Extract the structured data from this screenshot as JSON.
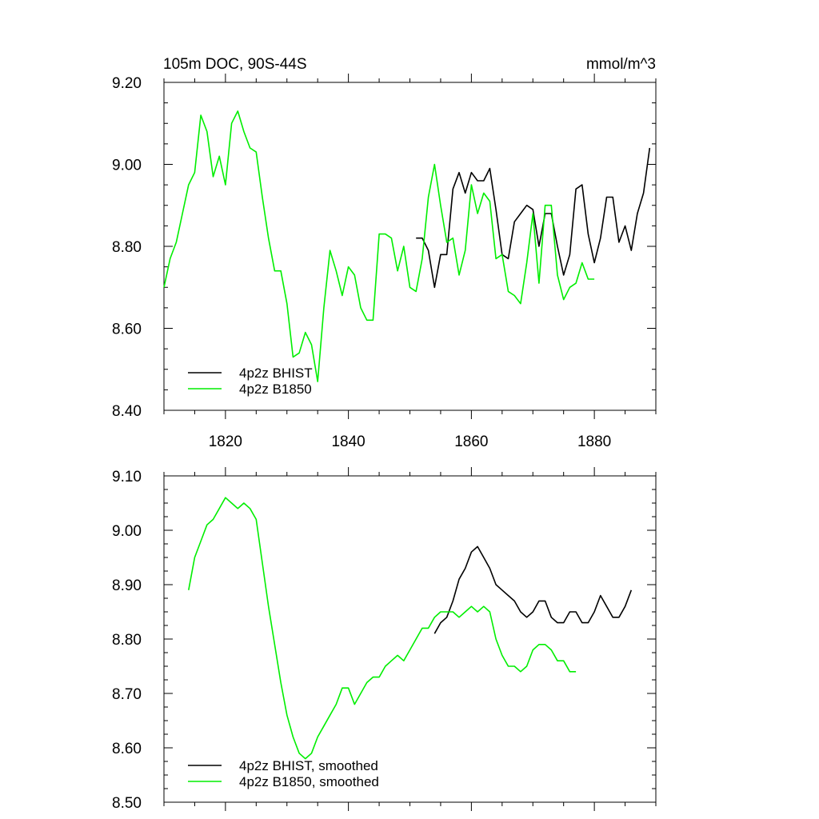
{
  "title_left": "105m DOC, 90S-44S",
  "title_right": "mmol/m^3",
  "colors": {
    "bhist": "#000000",
    "b1850": "#00ee00"
  },
  "chart_data": [
    {
      "type": "line",
      "xlim": [
        1810,
        1890
      ],
      "ylim": [
        8.4,
        9.2
      ],
      "x_ticks": [
        1820,
        1840,
        1860,
        1880
      ],
      "y_ticks": [
        8.4,
        8.6,
        8.8,
        9.0,
        9.2
      ],
      "y_tick_labels": [
        "8.40",
        "8.60",
        "8.80",
        "9.00",
        "9.20"
      ],
      "grid": false,
      "legend_position": "bottom-left",
      "series": [
        {
          "name": "4p2z BHIST",
          "color": "#000000",
          "x": [
            1851,
            1852,
            1853,
            1854,
            1855,
            1856,
            1857,
            1858,
            1859,
            1860,
            1861,
            1862,
            1863,
            1864,
            1865,
            1866,
            1867,
            1868,
            1869,
            1870,
            1871,
            1872,
            1873,
            1874,
            1875,
            1876,
            1877,
            1878,
            1879,
            1880,
            1881,
            1882,
            1883,
            1884,
            1885,
            1886,
            1887,
            1888,
            1889
          ],
          "values": [
            8.82,
            8.82,
            8.79,
            8.7,
            8.78,
            8.78,
            8.94,
            8.98,
            8.93,
            8.98,
            8.96,
            8.96,
            8.99,
            8.89,
            8.78,
            8.77,
            8.86,
            8.88,
            8.9,
            8.89,
            8.8,
            8.88,
            8.88,
            8.8,
            8.73,
            8.78,
            8.94,
            8.95,
            8.83,
            8.76,
            8.82,
            8.92,
            8.92,
            8.81,
            8.85,
            8.79,
            8.88,
            8.93,
            9.04
          ]
        },
        {
          "name": "4p2z B1850",
          "color": "#00ee00",
          "x": [
            1810,
            1811,
            1812,
            1813,
            1814,
            1815,
            1816,
            1817,
            1818,
            1819,
            1820,
            1821,
            1822,
            1823,
            1824,
            1825,
            1826,
            1827,
            1828,
            1829,
            1830,
            1831,
            1832,
            1833,
            1834,
            1835,
            1836,
            1837,
            1838,
            1839,
            1840,
            1841,
            1842,
            1843,
            1844,
            1845,
            1846,
            1847,
            1848,
            1849,
            1850,
            1851,
            1852,
            1853,
            1854,
            1855,
            1856,
            1857,
            1858,
            1859,
            1860,
            1861,
            1862,
            1863,
            1864,
            1865,
            1866,
            1867,
            1868,
            1869,
            1870,
            1871,
            1872,
            1873,
            1874,
            1875,
            1876,
            1877,
            1878,
            1879,
            1880
          ],
          "values": [
            8.7,
            8.77,
            8.81,
            8.88,
            8.95,
            8.98,
            9.12,
            9.08,
            8.97,
            9.02,
            8.95,
            9.1,
            9.13,
            9.08,
            9.04,
            9.03,
            8.92,
            8.82,
            8.74,
            8.74,
            8.66,
            8.53,
            8.54,
            8.59,
            8.56,
            8.47,
            8.65,
            8.79,
            8.74,
            8.68,
            8.75,
            8.73,
            8.65,
            8.62,
            8.62,
            8.83,
            8.83,
            8.82,
            8.74,
            8.8,
            8.7,
            8.69,
            8.77,
            8.92,
            9.0,
            8.9,
            8.81,
            8.82,
            8.73,
            8.79,
            8.95,
            8.88,
            8.93,
            8.91,
            8.77,
            8.78,
            8.69,
            8.68,
            8.66,
            8.76,
            8.88,
            8.71,
            8.9,
            8.9,
            8.73,
            8.67,
            8.7,
            8.71,
            8.76,
            8.72,
            8.72
          ]
        }
      ]
    },
    {
      "type": "line",
      "xlim": [
        1810,
        1890
      ],
      "ylim": [
        8.5,
        9.1
      ],
      "x_ticks": [
        1820,
        1840,
        1860,
        1880
      ],
      "y_ticks": [
        8.5,
        8.6,
        8.7,
        8.8,
        8.9,
        9.0,
        9.1
      ],
      "y_tick_labels": [
        "8.50",
        "8.60",
        "8.70",
        "8.80",
        "8.90",
        "9.00",
        "9.10"
      ],
      "grid": false,
      "legend_position": "bottom-left",
      "series": [
        {
          "name": "4p2z BHIST, smoothed",
          "color": "#000000",
          "x": [
            1854,
            1855,
            1856,
            1857,
            1858,
            1859,
            1860,
            1861,
            1862,
            1863,
            1864,
            1865,
            1866,
            1867,
            1868,
            1869,
            1870,
            1871,
            1872,
            1873,
            1874,
            1875,
            1876,
            1877,
            1878,
            1879,
            1880,
            1881,
            1882,
            1883,
            1884,
            1885,
            1886
          ],
          "values": [
            8.81,
            8.83,
            8.84,
            8.87,
            8.91,
            8.93,
            8.96,
            8.97,
            8.95,
            8.93,
            8.9,
            8.89,
            8.88,
            8.87,
            8.85,
            8.84,
            8.85,
            8.87,
            8.87,
            8.84,
            8.83,
            8.83,
            8.85,
            8.85,
            8.83,
            8.83,
            8.85,
            8.88,
            8.86,
            8.84,
            8.84,
            8.86,
            8.89
          ]
        },
        {
          "name": "4p2z B1850, smoothed",
          "color": "#00ee00",
          "x": [
            1814,
            1815,
            1816,
            1817,
            1818,
            1819,
            1820,
            1821,
            1822,
            1823,
            1824,
            1825,
            1826,
            1827,
            1828,
            1829,
            1830,
            1831,
            1832,
            1833,
            1834,
            1835,
            1836,
            1837,
            1838,
            1839,
            1840,
            1841,
            1842,
            1843,
            1844,
            1845,
            1846,
            1847,
            1848,
            1849,
            1850,
            1851,
            1852,
            1853,
            1854,
            1855,
            1856,
            1857,
            1858,
            1859,
            1860,
            1861,
            1862,
            1863,
            1864,
            1865,
            1866,
            1867,
            1868,
            1869,
            1870,
            1871,
            1872,
            1873,
            1874,
            1875,
            1876,
            1877
          ],
          "values": [
            8.89,
            8.95,
            8.98,
            9.01,
            9.02,
            9.04,
            9.06,
            9.05,
            9.04,
            9.05,
            9.04,
            9.02,
            8.94,
            8.86,
            8.79,
            8.72,
            8.66,
            8.62,
            8.59,
            8.58,
            8.59,
            8.62,
            8.64,
            8.66,
            8.68,
            8.71,
            8.71,
            8.68,
            8.7,
            8.72,
            8.73,
            8.73,
            8.75,
            8.76,
            8.77,
            8.76,
            8.78,
            8.8,
            8.82,
            8.82,
            8.84,
            8.85,
            8.85,
            8.85,
            8.84,
            8.85,
            8.86,
            8.85,
            8.86,
            8.85,
            8.8,
            8.77,
            8.75,
            8.75,
            8.74,
            8.75,
            8.78,
            8.79,
            8.79,
            8.78,
            8.76,
            8.76,
            8.74,
            8.74
          ]
        }
      ]
    }
  ]
}
